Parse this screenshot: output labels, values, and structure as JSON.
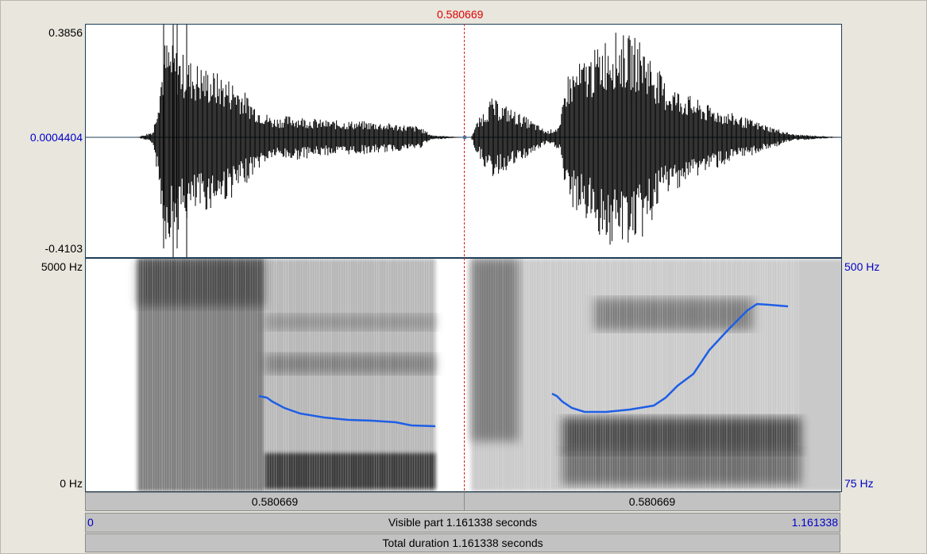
{
  "cursor_time": "0.580669",
  "waveform": {
    "max_label": "0.3856",
    "zero_label": "0.0004404",
    "min_label": "-0.4103"
  },
  "spectrogram": {
    "freq_top_label": "5000 Hz",
    "freq_bottom_label": "0 Hz",
    "pitch_top_label": "500 Hz",
    "pitch_bottom_label": "75 Hz"
  },
  "time_bar": {
    "left_segment": "0.580669",
    "right_segment": "0.580669"
  },
  "visible_bar": {
    "start": "0",
    "label": "Visible part 1.161338 seconds",
    "end": "1.161338"
  },
  "total_bar": {
    "label": "Total duration 1.161338 seconds"
  },
  "colors": {
    "pitch_curve": "#1e5ee6",
    "cursor": "#e02020",
    "axis_blue": "#0000c8",
    "panel_border": "#1d3d56"
  }
}
